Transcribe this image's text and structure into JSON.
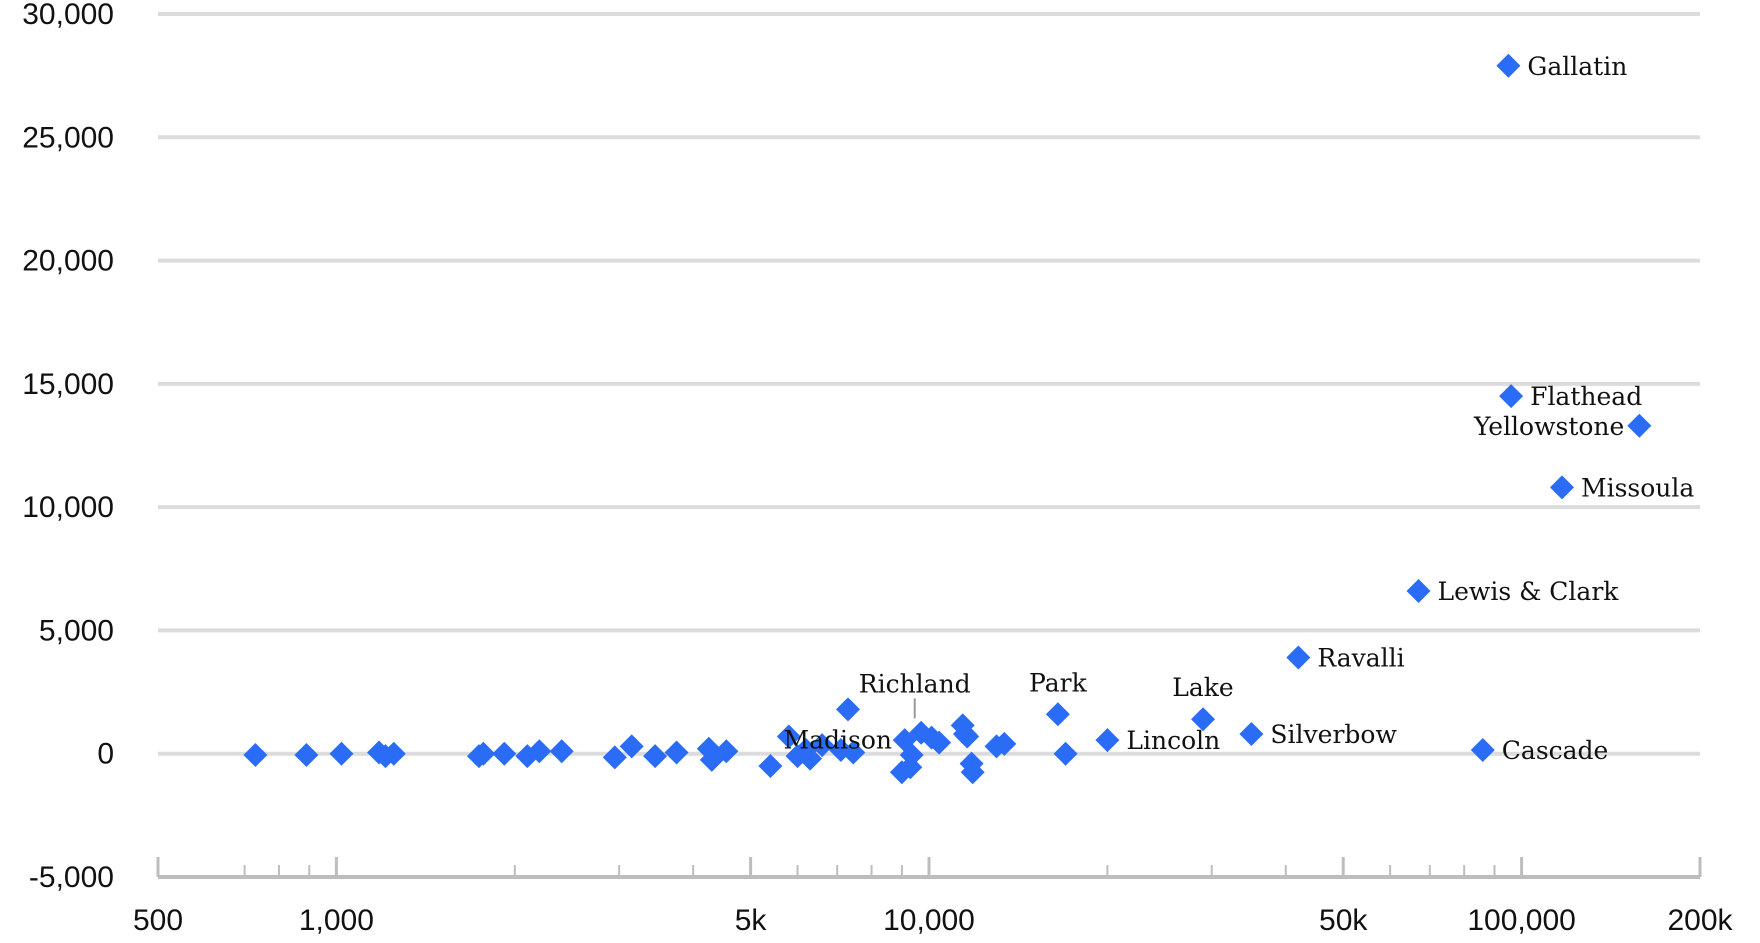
{
  "chart_data": {
    "type": "scatter",
    "title": "",
    "xlabel": "",
    "ylabel": "",
    "x_scale": "log",
    "xlim": [
      500,
      200000
    ],
    "ylim": [
      -5000,
      30000
    ],
    "grid": true,
    "legend": "none",
    "marker": "diamond",
    "colors": {
      "marker": "#2b6cf6",
      "grid": "#dcdcdc",
      "axis": "#bdbdbd",
      "text": "#111111"
    },
    "y_ticks": [
      {
        "value": 30000,
        "label": "30,000"
      },
      {
        "value": 25000,
        "label": "25,000"
      },
      {
        "value": 20000,
        "label": "20,000"
      },
      {
        "value": 15000,
        "label": "15,000"
      },
      {
        "value": 10000,
        "label": "10,000"
      },
      {
        "value": 5000,
        "label": "5,000"
      },
      {
        "value": 0,
        "label": "0"
      },
      {
        "value": -5000,
        "label": "-5,000"
      }
    ],
    "x_ticks": [
      {
        "value": 500,
        "label": "500"
      },
      {
        "value": 1000,
        "label": "1,000"
      },
      {
        "value": 5000,
        "label": "5k"
      },
      {
        "value": 10000,
        "label": "10,000"
      },
      {
        "value": 50000,
        "label": "50k"
      },
      {
        "value": 100000,
        "label": "100,000"
      },
      {
        "value": 200000,
        "label": "200k"
      }
    ],
    "x_minor_ticks": [
      700,
      800,
      900,
      2000,
      3000,
      4000,
      6000,
      7000,
      8000,
      9000,
      20000,
      30000,
      40000,
      60000,
      70000,
      80000,
      90000
    ],
    "points": [
      {
        "x": 95000,
        "y": 27900,
        "label": "Gallatin",
        "label_side": "right"
      },
      {
        "x": 96000,
        "y": 14500,
        "label": "Flathead",
        "label_side": "right"
      },
      {
        "x": 158000,
        "y": 13300,
        "label": "Yellowstone",
        "label_side": "left"
      },
      {
        "x": 117000,
        "y": 10800,
        "label": "Missoula",
        "label_side": "right"
      },
      {
        "x": 67000,
        "y": 6600,
        "label": "Lewis & Clark",
        "label_side": "right"
      },
      {
        "x": 42000,
        "y": 3900,
        "label": "Ravalli",
        "label_side": "right"
      },
      {
        "x": 86000,
        "y": 150,
        "label": "Cascade",
        "label_side": "right"
      },
      {
        "x": 35000,
        "y": 800,
        "label": "Silverbow",
        "label_side": "right"
      },
      {
        "x": 29000,
        "y": 1400,
        "label": "Lake",
        "label_side": "above"
      },
      {
        "x": 20000,
        "y": 550,
        "label": "Lincoln",
        "label_side": "right"
      },
      {
        "x": 16500,
        "y": 1600,
        "label": "Park",
        "label_side": "above"
      },
      {
        "x": 11400,
        "y": 1150,
        "label": "Richland",
        "label_side": "above-leader"
      },
      {
        "x": 7300,
        "y": 1800,
        "label": "Madison",
        "label_side": "left-below"
      },
      {
        "x": 730,
        "y": -50
      },
      {
        "x": 890,
        "y": -50
      },
      {
        "x": 1020,
        "y": 0
      },
      {
        "x": 1180,
        "y": 50
      },
      {
        "x": 1210,
        "y": -100
      },
      {
        "x": 1250,
        "y": 0
      },
      {
        "x": 1740,
        "y": -100
      },
      {
        "x": 1770,
        "y": 0
      },
      {
        "x": 1920,
        "y": 0
      },
      {
        "x": 2100,
        "y": -100
      },
      {
        "x": 2200,
        "y": 100
      },
      {
        "x": 2400,
        "y": 100
      },
      {
        "x": 2950,
        "y": -150
      },
      {
        "x": 3150,
        "y": 300
      },
      {
        "x": 3450,
        "y": -100
      },
      {
        "x": 3750,
        "y": 50
      },
      {
        "x": 4250,
        "y": 200
      },
      {
        "x": 4300,
        "y": -250
      },
      {
        "x": 4550,
        "y": 100
      },
      {
        "x": 5400,
        "y": -500
      },
      {
        "x": 5800,
        "y": 700
      },
      {
        "x": 6000,
        "y": -100
      },
      {
        "x": 6200,
        "y": 150
      },
      {
        "x": 6300,
        "y": -200
      },
      {
        "x": 6600,
        "y": 350
      },
      {
        "x": 7100,
        "y": 150
      },
      {
        "x": 7450,
        "y": 50
      },
      {
        "x": 9000,
        "y": -750
      },
      {
        "x": 9100,
        "y": 550
      },
      {
        "x": 9300,
        "y": -550
      },
      {
        "x": 9350,
        "y": -50
      },
      {
        "x": 9700,
        "y": 850
      },
      {
        "x": 10100,
        "y": 650
      },
      {
        "x": 10400,
        "y": 450
      },
      {
        "x": 11500,
        "y": 800
      },
      {
        "x": 11600,
        "y": 700
      },
      {
        "x": 11800,
        "y": -400
      },
      {
        "x": 11850,
        "y": -750
      },
      {
        "x": 13000,
        "y": 300
      },
      {
        "x": 13400,
        "y": 400
      },
      {
        "x": 17000,
        "y": 0
      }
    ]
  }
}
